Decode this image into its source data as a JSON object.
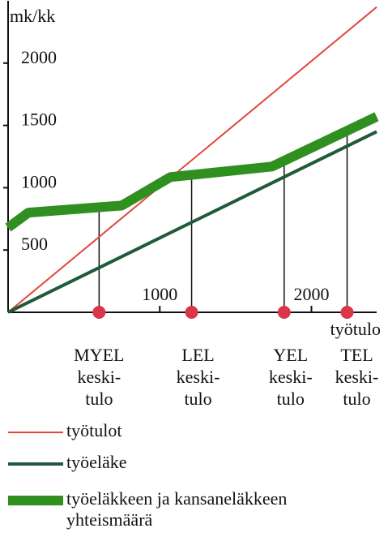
{
  "chart_data": {
    "type": "line",
    "ylabel": "mk/kk",
    "xlabel": "työtulo",
    "xlim": [
      0,
      2430
    ],
    "ylim": [
      0,
      2500
    ],
    "xticks": [
      1000,
      2000
    ],
    "yticks": [
      500,
      1000,
      1500,
      2000
    ],
    "series": [
      {
        "name": "työtulot",
        "color": "#e2473c",
        "x": [
          0,
          2430
        ],
        "values": [
          0,
          2450
        ]
      },
      {
        "name": "työeläke",
        "color": "#1f5a3a",
        "x": [
          0,
          2430
        ],
        "values": [
          0,
          1450
        ]
      },
      {
        "name": "työeläkkeen ja kansaneläkkeen yhteismäärä",
        "color": "#2f8f1f",
        "x": [
          0,
          134,
          750,
          1070,
          1740,
          2430
        ],
        "values": [
          680,
          800,
          857,
          1085,
          1170,
          1570
        ]
      }
    ],
    "markers": [
      {
        "lines": [
          "MYEL",
          "keski-",
          "tulo"
        ],
        "x": 600
      },
      {
        "lines": [
          "LEL",
          "keski-",
          "tulo"
        ],
        "x": 1210
      },
      {
        "lines": [
          "YEL",
          "keski-",
          "tulo"
        ],
        "x": 1820
      },
      {
        "lines": [
          "TEL",
          "keski-",
          "tulo"
        ],
        "x": 2235
      }
    ],
    "marker_color": "#d9364a"
  }
}
